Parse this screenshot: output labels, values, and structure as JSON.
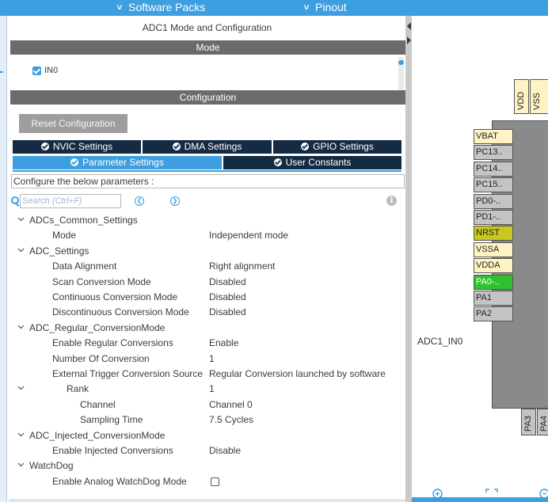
{
  "topbar": {
    "software_packs": "Software Packs",
    "pinout": "Pinout"
  },
  "panel": {
    "title": "ADC1 Mode and Configuration",
    "mode_header": "Mode",
    "mode_items": [
      {
        "label": "IN0",
        "checked": true
      }
    ],
    "config_header": "Configuration",
    "reset_button": "Reset Configuration",
    "tabs_row1": [
      {
        "label": "NVIC Settings"
      },
      {
        "label": "DMA Settings"
      },
      {
        "label": "GPIO Settings"
      }
    ],
    "tabs_row2": [
      {
        "label": "Parameter Settings",
        "active": true
      },
      {
        "label": "User Constants"
      }
    ],
    "config_prompt": "Configure the below parameters :",
    "search_placeholder": "Search (Ctrl+F)"
  },
  "tree": [
    {
      "level": 0,
      "expand": "chevron",
      "label": "ADCs_Common_Settings",
      "value": ""
    },
    {
      "level": 1,
      "label": "Mode",
      "value": "Independent mode"
    },
    {
      "level": 0,
      "expand": "chevron",
      "label": "ADC_Settings",
      "value": ""
    },
    {
      "level": 1,
      "label": "Data Alignment",
      "value": "Right alignment"
    },
    {
      "level": 1,
      "label": "Scan Conversion Mode",
      "value": "Disabled"
    },
    {
      "level": 1,
      "label": "Continuous Conversion Mode",
      "value": "Disabled"
    },
    {
      "level": 1,
      "label": "Discontinuous Conversion Mode",
      "value": "Disabled"
    },
    {
      "level": 0,
      "expand": "chevron",
      "label": "ADC_Regular_ConversionMode",
      "value": ""
    },
    {
      "level": 1,
      "label": "Enable Regular Conversions",
      "value": "Enable"
    },
    {
      "level": 1,
      "label": "Number Of Conversion",
      "value": "1"
    },
    {
      "level": 1,
      "label": "External Trigger Conversion Source",
      "value": "Regular Conversion launched by software"
    },
    {
      "level": 2,
      "expand": "chevron",
      "label": "Rank",
      "value": "1"
    },
    {
      "level": 3,
      "label": "Channel",
      "value": "Channel 0"
    },
    {
      "level": 3,
      "label": "Sampling Time",
      "value": "7.5 Cycles"
    },
    {
      "level": 0,
      "expand": "chevron",
      "label": "ADC_Injected_ConversionMode",
      "value": ""
    },
    {
      "level": 1,
      "label": "Enable Injected Conversions",
      "value": "Disable"
    },
    {
      "level": 0,
      "expand": "chevron",
      "label": "WatchDog",
      "value": ""
    },
    {
      "level": 1,
      "label": "Enable Analog WatchDog Mode",
      "value": "",
      "checkbox": false
    }
  ],
  "pinout": {
    "signal_label": "ADC1_IN0",
    "left_pins": [
      {
        "label": "VBAT",
        "kind": "power"
      },
      {
        "label": "PC13..",
        "kind": "free"
      },
      {
        "label": "PC14..",
        "kind": "free"
      },
      {
        "label": "PC15..",
        "kind": "free"
      },
      {
        "label": "PD0-..",
        "kind": "free"
      },
      {
        "label": "PD1-..",
        "kind": "free"
      },
      {
        "label": "NRST",
        "kind": "reset"
      },
      {
        "label": "VSSA",
        "kind": "power"
      },
      {
        "label": "VDDA",
        "kind": "power"
      },
      {
        "label": "PA0-..",
        "kind": "used"
      },
      {
        "label": "PA1",
        "kind": "free"
      },
      {
        "label": "PA2",
        "kind": "free"
      }
    ],
    "top_pins": {
      "vdd": "VDD",
      "vss": "VSS"
    },
    "bottom_pins": {
      "pa3": "PA3",
      "pa4": "PA4"
    },
    "colors": {
      "power": "#fff3c4",
      "free": "#c4c4c4",
      "reset": "#c8c81e",
      "used": "#2ec22e"
    }
  }
}
